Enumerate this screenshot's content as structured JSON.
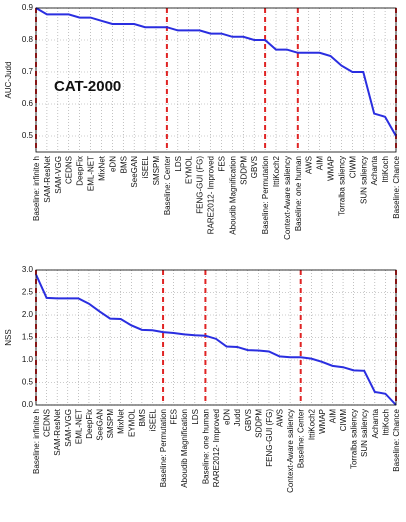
{
  "chart_data": [
    {
      "type": "line",
      "ylabel": "AUC-Judd",
      "annotation": "CAT-2000",
      "categories": [
        "Baseline: infinite h",
        "SAM-ResNet",
        "SAM-VGG",
        "CEDNS",
        "DeepFix",
        "EML-NET",
        "MixNet",
        "eDN",
        "BMS",
        "SeeGAN",
        "iSEEL",
        "SMSPM",
        "Baseline: Center",
        "LDS",
        "EYMOL",
        "FENG-GUI (FG)",
        "RARE2012- Improved",
        "FES",
        "Aboudib Magnification",
        "SDDPM",
        "GBVS",
        "Baseline: Permutation",
        "IttiKoch2",
        "Context-Aware saliency",
        "Baseline: one human",
        "AWS",
        "AIM",
        "WMAP",
        "Torralba saliency",
        "CIWM",
        "SUN saliency",
        "Achanta",
        "IttiKoch",
        "Baseline: Chance"
      ],
      "values": [
        0.9,
        0.88,
        0.88,
        0.88,
        0.87,
        0.87,
        0.86,
        0.85,
        0.85,
        0.85,
        0.84,
        0.84,
        0.84,
        0.83,
        0.83,
        0.83,
        0.82,
        0.82,
        0.81,
        0.81,
        0.8,
        0.8,
        0.77,
        0.77,
        0.76,
        0.76,
        0.76,
        0.75,
        0.72,
        0.7,
        0.7,
        0.57,
        0.56,
        0.5
      ],
      "color": "#2a2ee0",
      "ylim": [
        0.45,
        0.9
      ],
      "yticks": [
        0.5,
        0.6,
        0.7,
        0.8,
        0.9
      ],
      "grid": true,
      "vlines": [
        0,
        12,
        21,
        24,
        33
      ],
      "vline_color": "#e02424"
    },
    {
      "type": "line",
      "ylabel": "NSS",
      "categories": [
        "Baseline: infinite h",
        "CEDNS",
        "SAM-ResNet",
        "SAM-VGG",
        "EML-NET",
        "DeepFix",
        "SeeGAN",
        "SMSPM",
        "MixNet",
        "EYMOL",
        "BMS",
        "iSEEL",
        "Baseline: Permutation",
        "FES",
        "Aboudib Magnification",
        "LDS",
        "Baseline: one human",
        "RARE2012- Improved",
        "eDN",
        "Judd",
        "GBVS",
        "SDDPM",
        "FENG-GUI (FG)",
        "AWS",
        "Context-Aware saliency",
        "Baseline: Center",
        "IttiKoch2",
        "WMAP",
        "AIM",
        "CIWM",
        "Torralba saliency",
        "SUN saliency",
        "Achanta",
        "IttiKoch",
        "Baseline: Chance"
      ],
      "values": [
        2.9,
        2.38,
        2.37,
        2.37,
        2.37,
        2.25,
        2.08,
        1.92,
        1.91,
        1.77,
        1.67,
        1.66,
        1.62,
        1.6,
        1.57,
        1.55,
        1.54,
        1.47,
        1.3,
        1.29,
        1.22,
        1.21,
        1.19,
        1.08,
        1.06,
        1.06,
        1.03,
        0.96,
        0.87,
        0.84,
        0.77,
        0.76,
        0.29,
        0.25,
        0.0
      ],
      "color": "#2a2ee0",
      "ylim": [
        0,
        3
      ],
      "yticks": [
        {
          "value": 0,
          "label": "0.0"
        },
        0.5,
        {
          "value": 1,
          "label": "1.0"
        },
        1.5,
        {
          "value": 2,
          "label": "2.0"
        },
        2.5,
        {
          "value": 3,
          "label": "3.0"
        }
      ],
      "grid": true,
      "vlines": [
        0,
        12,
        16,
        25,
        34
      ],
      "vline_color": "#e02424"
    }
  ]
}
